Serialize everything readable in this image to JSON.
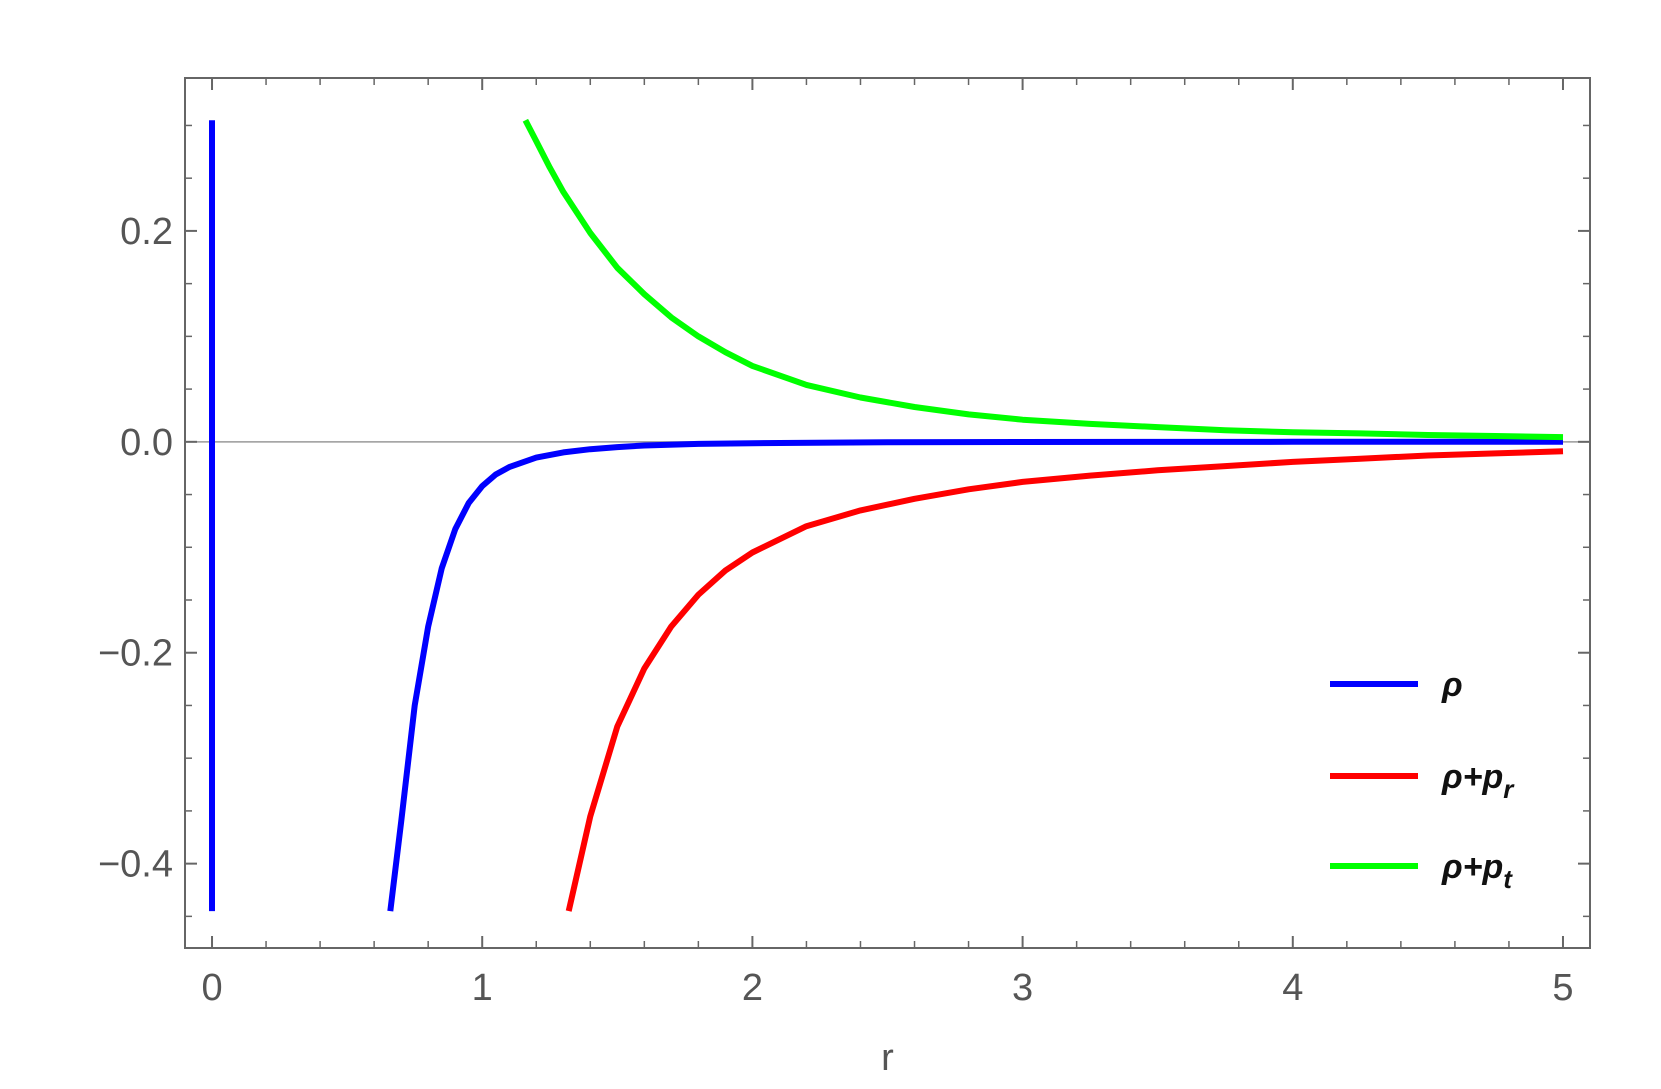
{
  "chart_data": {
    "type": "line",
    "title": "",
    "xlabel": "r",
    "ylabel": "",
    "xlim": [
      -0.1,
      5.1
    ],
    "ylim": [
      -0.48,
      0.345
    ],
    "x_ticks": [
      0,
      1,
      2,
      3,
      4,
      5
    ],
    "x_tick_labels": [
      "0",
      "1",
      "2",
      "3",
      "4",
      "5"
    ],
    "y_ticks": [
      -0.4,
      -0.2,
      0.0,
      0.2
    ],
    "y_tick_labels": [
      "−0.4",
      "−0.2",
      "0.0",
      "0.2"
    ],
    "grid": false,
    "zero_line": true,
    "legend_position": "bottom-right",
    "series": [
      {
        "name": "ρ",
        "color": "#0000ff",
        "segments": [
          {
            "x": [
              0.0,
              0.0
            ],
            "y": [
              0.305,
              -0.445
            ]
          },
          {
            "x": [
              0.66,
              0.7,
              0.75,
              0.8,
              0.85,
              0.9,
              0.95,
              1.0,
              1.05,
              1.1,
              1.2,
              1.3,
              1.4,
              1.5,
              1.6,
              1.8,
              2.0,
              2.5,
              3.0,
              3.5,
              4.0,
              4.5,
              5.0
            ],
            "y": [
              -0.445,
              -0.36,
              -0.25,
              -0.175,
              -0.12,
              -0.083,
              -0.058,
              -0.042,
              -0.031,
              -0.024,
              -0.015,
              -0.01,
              -0.007,
              -0.005,
              -0.0035,
              -0.002,
              -0.0013,
              -0.0005,
              -0.0002,
              -0.0001,
              0.0,
              0.0,
              0.0
            ]
          }
        ]
      },
      {
        "name": "ρ+p_r",
        "color": "#ff0000",
        "segments": [
          {
            "x": [
              1.32,
              1.4,
              1.5,
              1.6,
              1.7,
              1.8,
              1.9,
              2.0,
              2.2,
              2.4,
              2.6,
              2.8,
              3.0,
              3.25,
              3.5,
              3.75,
              4.0,
              4.25,
              4.5,
              4.75,
              5.0
            ],
            "y": [
              -0.445,
              -0.355,
              -0.27,
              -0.215,
              -0.175,
              -0.145,
              -0.122,
              -0.105,
              -0.08,
              -0.065,
              -0.054,
              -0.045,
              -0.038,
              -0.032,
              -0.027,
              -0.023,
              -0.019,
              -0.016,
              -0.013,
              -0.011,
              -0.009
            ]
          }
        ]
      },
      {
        "name": "ρ+p_t",
        "color": "#00ff00",
        "segments": [
          {
            "x": [
              1.16,
              1.2,
              1.25,
              1.3,
              1.4,
              1.5,
              1.6,
              1.7,
              1.8,
              1.9,
              2.0,
              2.2,
              2.4,
              2.6,
              2.8,
              3.0,
              3.25,
              3.5,
              3.75,
              4.0,
              4.25,
              4.5,
              4.75,
              5.0
            ],
            "y": [
              0.305,
              0.285,
              0.26,
              0.237,
              0.198,
              0.165,
              0.14,
              0.118,
              0.1,
              0.085,
              0.072,
              0.054,
              0.042,
              0.033,
              0.026,
              0.021,
              0.017,
              0.014,
              0.011,
              0.009,
              0.008,
              0.0065,
              0.0055,
              0.0045
            ]
          }
        ]
      }
    ],
    "legend": [
      {
        "base": "ρ+",
        "sub": ""
      },
      {
        "base": "ρ+p",
        "sub": "r"
      },
      {
        "base": "ρ+p",
        "sub": "t"
      }
    ]
  }
}
